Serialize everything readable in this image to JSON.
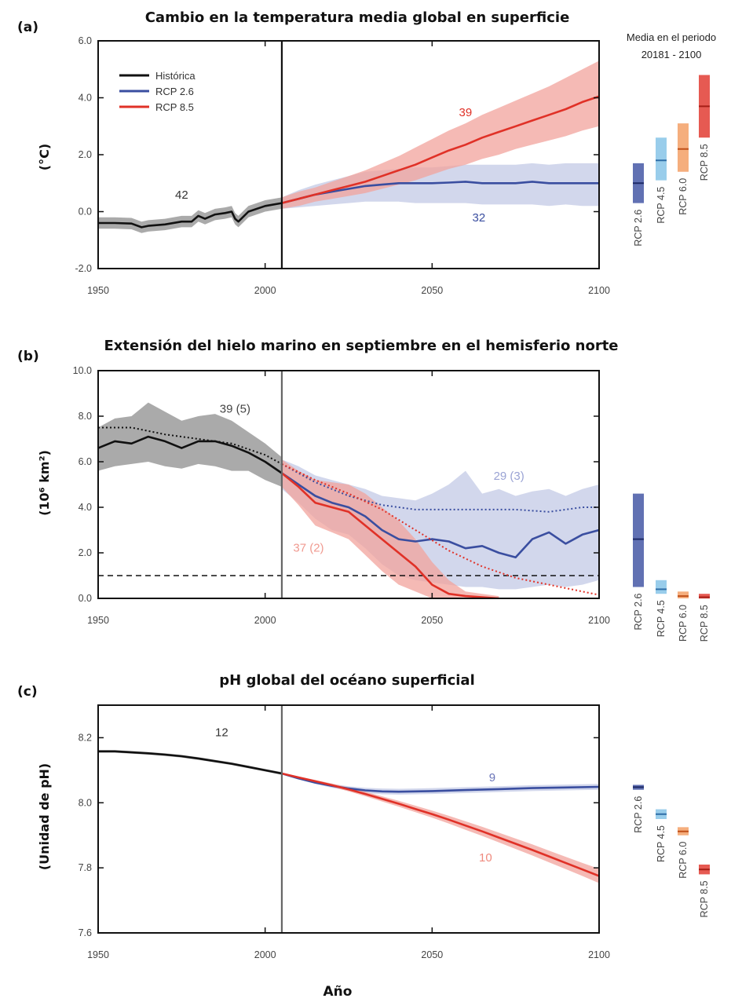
{
  "x_axis": {
    "label": "Año",
    "ticks": [
      1950,
      2000,
      2050,
      2100
    ]
  },
  "colors": {
    "historical": "#111111",
    "rcp26": "#3a4ea0",
    "rcp45": "#7fc1e6",
    "rcp60": "#f29a5c",
    "rcp85": "#e03127",
    "rcp26_band": "#c3c9e6",
    "rcp85_band": "#f2a39c",
    "hist_band": "#9b9b9b"
  },
  "side_labels": [
    "RCP 2.6",
    "RCP 4.5",
    "RCP 6.0",
    "RCP 8.5"
  ],
  "chart_data": [
    {
      "type": "line",
      "panel_label": "(a)",
      "title": "Cambio en la temperatura media global en superficie",
      "ylabel": "(°C)",
      "xlim": [
        1950,
        2100
      ],
      "ylim": [
        -2.0,
        6.0
      ],
      "y_ticks": [
        "6.0",
        "4.0",
        "2.0",
        "0.0",
        "-2.0"
      ],
      "y_tick_values": [
        6,
        4,
        2,
        0,
        -2
      ],
      "legend": {
        "placement": "top-left",
        "entries": [
          {
            "label": "Histórica",
            "color": "#111111"
          },
          {
            "label": "RCP 2.6",
            "color": "#3a4ea0"
          },
          {
            "label": "RCP 8.5",
            "color": "#e03127"
          }
        ]
      },
      "series": [
        {
          "key": "historical",
          "x": [
            1950,
            1955,
            1960,
            1963,
            1965,
            1970,
            1975,
            1978,
            1980,
            1982,
            1985,
            1988,
            1990,
            1991,
            1992,
            1995,
            2000,
            2005
          ],
          "y": [
            -0.4,
            -0.4,
            -0.42,
            -0.55,
            -0.5,
            -0.45,
            -0.35,
            -0.35,
            -0.15,
            -0.25,
            -0.1,
            -0.05,
            0.0,
            -0.25,
            -0.35,
            0.0,
            0.2,
            0.3
          ],
          "band_half_width": 0.2
        },
        {
          "key": "rcp26",
          "x": [
            2005,
            2010,
            2015,
            2020,
            2025,
            2030,
            2035,
            2040,
            2045,
            2050,
            2055,
            2060,
            2065,
            2070,
            2075,
            2080,
            2085,
            2090,
            2095,
            2100
          ],
          "y": [
            0.3,
            0.45,
            0.6,
            0.7,
            0.8,
            0.9,
            0.95,
            1.0,
            1.0,
            1.0,
            1.02,
            1.05,
            1.0,
            1.0,
            1.0,
            1.05,
            1.0,
            1.0,
            1.0,
            1.0
          ],
          "band_lower": [
            0.1,
            0.15,
            0.2,
            0.25,
            0.3,
            0.35,
            0.35,
            0.35,
            0.3,
            0.3,
            0.3,
            0.3,
            0.25,
            0.25,
            0.25,
            0.25,
            0.2,
            0.25,
            0.2,
            0.2
          ],
          "band_upper": [
            0.5,
            0.75,
            0.95,
            1.1,
            1.25,
            1.4,
            1.45,
            1.5,
            1.55,
            1.55,
            1.6,
            1.65,
            1.65,
            1.65,
            1.65,
            1.7,
            1.65,
            1.7,
            1.7,
            1.7
          ]
        },
        {
          "key": "rcp85",
          "x": [
            2005,
            2010,
            2015,
            2020,
            2025,
            2030,
            2035,
            2040,
            2045,
            2050,
            2055,
            2060,
            2065,
            2070,
            2075,
            2080,
            2085,
            2090,
            2095,
            2100
          ],
          "y": [
            0.3,
            0.45,
            0.6,
            0.75,
            0.9,
            1.05,
            1.25,
            1.45,
            1.65,
            1.9,
            2.15,
            2.35,
            2.6,
            2.8,
            3.0,
            3.2,
            3.4,
            3.6,
            3.85,
            4.05
          ],
          "band_lower": [
            0.1,
            0.2,
            0.35,
            0.45,
            0.55,
            0.65,
            0.8,
            0.95,
            1.1,
            1.3,
            1.5,
            1.65,
            1.85,
            2.0,
            2.2,
            2.35,
            2.5,
            2.65,
            2.85,
            3.0
          ],
          "band_upper": [
            0.5,
            0.7,
            0.85,
            1.05,
            1.25,
            1.45,
            1.7,
            1.95,
            2.25,
            2.55,
            2.85,
            3.1,
            3.4,
            3.65,
            3.9,
            4.15,
            4.4,
            4.7,
            5.0,
            5.3
          ]
        }
      ],
      "vline": 2005,
      "annotations": [
        {
          "text": "42",
          "x": 1975,
          "y": 0.45,
          "color": "#333333"
        },
        {
          "text": "39",
          "x": 2060,
          "y": 3.35,
          "color": "#e03127"
        },
        {
          "text": "32",
          "x": 2064,
          "y": -0.35,
          "color": "#3a4ea0"
        }
      ],
      "side_title_1": "Media en el periodo",
      "side_title_2": "20181 - 2100",
      "side_bars": [
        {
          "low": 0.3,
          "high": 1.7,
          "mean": 1.0
        },
        {
          "low": 1.1,
          "high": 2.6,
          "mean": 1.8
        },
        {
          "low": 1.4,
          "high": 3.1,
          "mean": 2.2
        },
        {
          "low": 2.6,
          "high": 4.8,
          "mean": 3.7
        }
      ]
    },
    {
      "type": "line",
      "panel_label": "(b)",
      "title": "Extensión del hielo marino en septiembre en el hemisferio norte",
      "ylabel": "(10⁶ km²)",
      "xlim": [
        1950,
        2100
      ],
      "ylim": [
        0.0,
        10.0
      ],
      "y_ticks": [
        "10.0",
        "8.0",
        "6.0",
        "4.0",
        "2.0",
        "0.0"
      ],
      "y_tick_values": [
        10,
        8,
        6,
        4,
        2,
        0
      ],
      "series": [
        {
          "key": "historical",
          "x": [
            1950,
            1955,
            1960,
            1965,
            1970,
            1975,
            1980,
            1985,
            1990,
            1995,
            2000,
            2005
          ],
          "y": [
            6.6,
            6.9,
            6.8,
            7.1,
            6.9,
            6.6,
            6.9,
            6.9,
            6.7,
            6.4,
            6.0,
            5.5
          ],
          "band_lower": [
            5.6,
            5.8,
            5.9,
            6.0,
            5.8,
            5.7,
            5.9,
            5.8,
            5.6,
            5.6,
            5.2,
            4.9
          ],
          "band_upper": [
            7.5,
            7.9,
            8.0,
            8.6,
            8.2,
            7.8,
            8.0,
            8.1,
            7.8,
            7.3,
            6.8,
            6.2
          ]
        },
        {
          "key": "historical_dotted",
          "x": [
            1950,
            1960,
            1970,
            1980,
            1990,
            2000,
            2005
          ],
          "y": [
            7.5,
            7.5,
            7.2,
            7.0,
            6.8,
            6.3,
            5.9
          ]
        },
        {
          "key": "rcp26",
          "x": [
            2005,
            2010,
            2015,
            2020,
            2025,
            2030,
            2035,
            2040,
            2045,
            2050,
            2055,
            2060,
            2065,
            2070,
            2075,
            2080,
            2085,
            2090,
            2095,
            2100
          ],
          "y": [
            5.5,
            5.0,
            4.5,
            4.2,
            4.0,
            3.6,
            3.0,
            2.6,
            2.5,
            2.6,
            2.5,
            2.2,
            2.3,
            2.0,
            1.8,
            2.6,
            2.9,
            2.4,
            2.8,
            3.0
          ],
          "band_lower": [
            4.8,
            4.2,
            3.5,
            3.0,
            2.8,
            2.2,
            1.5,
            1.0,
            0.8,
            0.7,
            0.6,
            0.5,
            0.5,
            0.4,
            0.4,
            0.5,
            0.6,
            0.5,
            0.6,
            0.8
          ],
          "band_upper": [
            6.1,
            5.8,
            5.4,
            5.2,
            5.0,
            4.8,
            4.5,
            4.4,
            4.3,
            4.6,
            5.0,
            5.6,
            4.6,
            4.8,
            4.5,
            4.7,
            4.8,
            4.5,
            4.8,
            5.0
          ]
        },
        {
          "key": "rcp26_dotted",
          "x": [
            2005,
            2015,
            2025,
            2035,
            2045,
            2055,
            2065,
            2075,
            2085,
            2095,
            2100
          ],
          "y": [
            5.9,
            5.1,
            4.5,
            4.1,
            3.9,
            3.9,
            3.9,
            3.9,
            3.8,
            4.0,
            4.0
          ]
        },
        {
          "key": "rcp85",
          "x": [
            2005,
            2010,
            2015,
            2020,
            2025,
            2030,
            2035,
            2040,
            2045,
            2050,
            2055,
            2060,
            2065,
            2070
          ],
          "y": [
            5.5,
            4.9,
            4.2,
            4.0,
            3.8,
            3.2,
            2.6,
            2.0,
            1.4,
            0.6,
            0.2,
            0.1,
            0.05,
            0.0
          ],
          "band_lower": [
            4.9,
            4.1,
            3.2,
            2.9,
            2.6,
            1.9,
            1.2,
            0.6,
            0.3,
            0.0,
            0.0,
            0.0,
            0.0,
            0.0
          ],
          "band_upper": [
            6.1,
            5.6,
            5.2,
            5.1,
            5.0,
            4.6,
            4.0,
            3.4,
            2.6,
            1.6,
            0.8,
            0.3,
            0.2,
            0.1
          ]
        },
        {
          "key": "rcp85_dotted",
          "x": [
            2005,
            2015,
            2025,
            2035,
            2045,
            2055,
            2065,
            2075,
            2085,
            2095,
            2100
          ],
          "y": [
            5.9,
            5.2,
            4.6,
            3.9,
            3.0,
            2.1,
            1.4,
            0.9,
            0.6,
            0.3,
            0.15
          ]
        }
      ],
      "hline": 1.0,
      "vline": 2005,
      "annotations": [
        {
          "text": "39 (5)",
          "x": 1991,
          "y": 8.15,
          "color": "#444444"
        },
        {
          "text": "29 (3)",
          "x": 2073,
          "y": 5.2,
          "color": "#9aa3d4"
        },
        {
          "text": "37 (2)",
          "x": 2013,
          "y": 2.05,
          "color": "#f09a90"
        }
      ],
      "side_bars": [
        {
          "low": 0.5,
          "high": 4.6,
          "mean": 2.6
        },
        {
          "low": 0.2,
          "high": 0.8,
          "mean": 0.4
        },
        {
          "low": 0.0,
          "high": 0.3,
          "mean": 0.1
        },
        {
          "low": 0.0,
          "high": 0.2,
          "mean": 0.05
        }
      ]
    },
    {
      "type": "line",
      "panel_label": "(c)",
      "title": "pH global del océano superficial",
      "ylabel": "(Unidad de pH)",
      "xlim": [
        1950,
        2100
      ],
      "ylim": [
        7.6,
        8.3
      ],
      "y_ticks": [
        "8.2",
        "8.0",
        "7.8",
        "7.6"
      ],
      "y_tick_values": [
        8.2,
        8.0,
        7.8,
        7.6
      ],
      "series": [
        {
          "key": "historical",
          "x": [
            1950,
            1955,
            1960,
            1965,
            1970,
            1975,
            1980,
            1985,
            1990,
            1995,
            2000,
            2005
          ],
          "y": [
            8.158,
            8.158,
            8.155,
            8.152,
            8.148,
            8.143,
            8.136,
            8.128,
            8.12,
            8.11,
            8.1,
            8.09
          ],
          "band_half_width": 0.004
        },
        {
          "key": "rcp26",
          "x": [
            2005,
            2010,
            2015,
            2020,
            2025,
            2030,
            2035,
            2040,
            2045,
            2050,
            2060,
            2070,
            2080,
            2090,
            2100
          ],
          "y": [
            8.09,
            8.075,
            8.062,
            8.052,
            8.044,
            8.038,
            8.035,
            8.034,
            8.035,
            8.036,
            8.039,
            8.042,
            8.045,
            8.047,
            8.049
          ],
          "band_lower": [
            8.088,
            8.072,
            8.058,
            8.046,
            8.037,
            8.03,
            8.026,
            8.025,
            8.026,
            8.027,
            8.03,
            8.033,
            8.036,
            8.038,
            8.04
          ],
          "band_upper": [
            8.092,
            8.078,
            8.066,
            8.058,
            8.051,
            8.046,
            8.044,
            8.043,
            8.044,
            8.045,
            8.048,
            8.051,
            8.054,
            8.056,
            8.058
          ]
        },
        {
          "key": "rcp85",
          "x": [
            2005,
            2010,
            2015,
            2020,
            2025,
            2030,
            2035,
            2040,
            2045,
            2050,
            2055,
            2060,
            2065,
            2070,
            2075,
            2080,
            2085,
            2090,
            2095,
            2100
          ],
          "y": [
            8.09,
            8.078,
            8.066,
            8.054,
            8.041,
            8.027,
            8.012,
            7.997,
            7.981,
            7.965,
            7.948,
            7.93,
            7.912,
            7.893,
            7.874,
            7.855,
            7.835,
            7.815,
            7.795,
            7.775
          ],
          "band_lower": [
            8.088,
            8.075,
            8.062,
            8.049,
            8.035,
            8.02,
            8.004,
            7.988,
            7.971,
            7.954,
            7.936,
            7.917,
            7.898,
            7.878,
            7.858,
            7.838,
            7.817,
            7.796,
            7.775,
            7.753
          ],
          "band_upper": [
            8.092,
            8.081,
            8.07,
            8.059,
            8.047,
            8.034,
            8.02,
            8.006,
            7.991,
            7.976,
            7.96,
            7.943,
            7.926,
            7.908,
            7.89,
            7.872,
            7.853,
            7.834,
            7.815,
            7.797
          ]
        }
      ],
      "vline": 2005,
      "annotations": [
        {
          "text": "12",
          "x": 1987,
          "y": 8.205,
          "color": "#333333"
        },
        {
          "text": "9",
          "x": 2068,
          "y": 8.066,
          "color": "#6b75b8"
        },
        {
          "text": "10",
          "x": 2066,
          "y": 7.82,
          "color": "#ef8a7e"
        }
      ],
      "side_bars": [
        {
          "low": 8.04,
          "high": 8.055,
          "mean": 8.048
        },
        {
          "low": 7.95,
          "high": 7.98,
          "mean": 7.965
        },
        {
          "low": 7.9,
          "high": 7.925,
          "mean": 7.912
        },
        {
          "low": 7.78,
          "high": 7.81,
          "mean": 7.795
        }
      ]
    }
  ]
}
